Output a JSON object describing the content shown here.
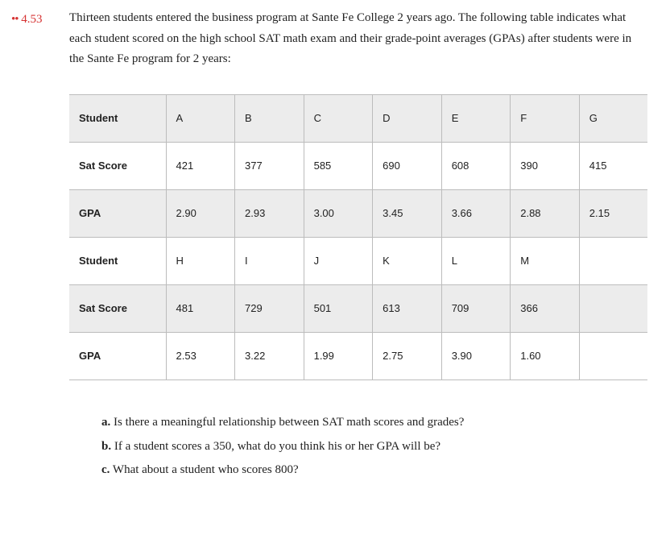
{
  "problem": {
    "dots": "••",
    "number": "4.53",
    "intro": "Thirteen students entered the business program at Sante Fe College 2 years ago. The following table indicates what each student scored on the high school SAT math exam and their grade-point averages (GPAs) after students were in the Sante Fe program for 2 years:"
  },
  "table": {
    "label_student": "Student",
    "label_sat": "Sat Score",
    "label_gpa": "GPA",
    "students1": [
      "A",
      "B",
      "C",
      "D",
      "E",
      "F",
      "G"
    ],
    "sat1": [
      "421",
      "377",
      "585",
      "690",
      "608",
      "390",
      "415"
    ],
    "gpa1": [
      "2.90",
      "2.93",
      "3.00",
      "3.45",
      "3.66",
      "2.88",
      "2.15"
    ],
    "students2": [
      "H",
      "I",
      "J",
      "K",
      "L",
      "M",
      ""
    ],
    "sat2": [
      "481",
      "729",
      "501",
      "613",
      "709",
      "366",
      ""
    ],
    "gpa2": [
      "2.53",
      "3.22",
      "1.99",
      "2.75",
      "3.90",
      "1.60",
      ""
    ]
  },
  "questions": {
    "a_label": "a.",
    "a": "Is there a meaningful relationship between SAT math scores and grades?",
    "b_label": "b.",
    "b": "If a student scores a 350, what do you think his or her GPA will be?",
    "c_label": "c.",
    "c": "What about a student who scores 800?"
  },
  "colors": {
    "accent": "#d63333",
    "text": "#222222",
    "border": "#bcbcbc",
    "shade": "#ececec",
    "background": "#ffffff"
  },
  "typography": {
    "body_family": "Georgia, serif",
    "table_family": "Arial, sans-serif",
    "body_size_pt": 11,
    "table_size_pt": 10
  }
}
